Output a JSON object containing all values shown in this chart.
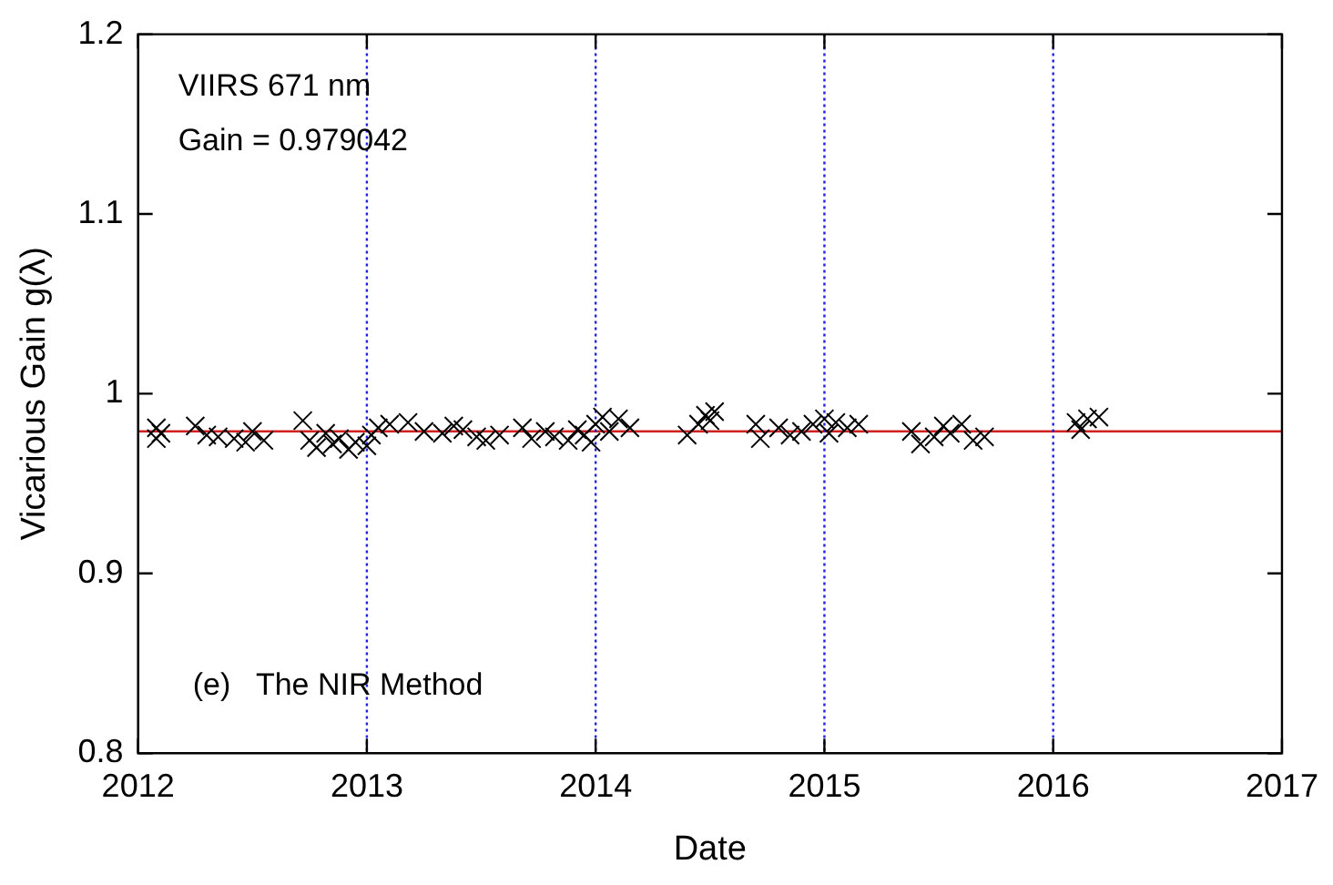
{
  "chart_data": {
    "type": "scatter",
    "xlabel": "Date",
    "ylabel": "Vicarious Gain g(λ)",
    "annotations": [
      "VIIRS 671 nm",
      "Gain = 0.979042",
      "(e)   The NIR Method"
    ],
    "xlim": [
      2012,
      2017
    ],
    "xticks": [
      2012,
      2013,
      2014,
      2015,
      2016,
      2017
    ],
    "ylim": [
      0.8,
      1.2
    ],
    "yticks": [
      0.8,
      0.9,
      1,
      1.1,
      1.2
    ],
    "grid": false,
    "legend": false,
    "marker": "cross",
    "ref_lines": [
      {
        "axis": "y",
        "value": 0.979042,
        "color": "#d02020",
        "line_style": "solid"
      },
      {
        "axis": "x",
        "value": 2013,
        "color": "#2020e0",
        "line_style": "dotted"
      },
      {
        "axis": "x",
        "value": 2014,
        "color": "#2020e0",
        "line_style": "dotted"
      },
      {
        "axis": "x",
        "value": 2015,
        "color": "#2020e0",
        "line_style": "dotted"
      },
      {
        "axis": "x",
        "value": 2016,
        "color": "#2020e0",
        "line_style": "dotted"
      }
    ],
    "series": [
      {
        "color": "#000000",
        "x": [
          2012.08,
          2012.08,
          2012.1,
          2012.25,
          2012.3,
          2012.35,
          2012.42,
          2012.47,
          2012.5,
          2012.55,
          2012.72,
          2012.75,
          2012.78,
          2012.82,
          2012.85,
          2012.88,
          2012.92,
          2012.95,
          2013.0,
          2013.02,
          2013.05,
          2013.1,
          2013.18,
          2013.25,
          2013.33,
          2013.38,
          2013.42,
          2013.48,
          2013.52,
          2013.58,
          2013.68,
          2013.72,
          2013.78,
          2013.82,
          2013.88,
          2013.92,
          2013.95,
          2013.98,
          2014.0,
          2014.03,
          2014.06,
          2014.1,
          2014.15,
          2014.4,
          2014.45,
          2014.48,
          2014.5,
          2014.52,
          2014.7,
          2014.72,
          2014.8,
          2014.85,
          2014.9,
          2014.95,
          2015.0,
          2015.02,
          2015.05,
          2015.1,
          2015.15,
          2015.38,
          2015.42,
          2015.48,
          2015.52,
          2015.55,
          2015.6,
          2015.65,
          2015.7,
          2016.1,
          2016.12,
          2016.15,
          2016.2
        ],
        "values": [
          0.975,
          0.981,
          0.978,
          0.982,
          0.977,
          0.976,
          0.975,
          0.973,
          0.979,
          0.974,
          0.985,
          0.974,
          0.97,
          0.978,
          0.972,
          0.975,
          0.969,
          0.973,
          0.971,
          0.977,
          0.981,
          0.983,
          0.984,
          0.979,
          0.978,
          0.982,
          0.98,
          0.976,
          0.974,
          0.977,
          0.981,
          0.975,
          0.979,
          0.976,
          0.974,
          0.98,
          0.977,
          0.973,
          0.983,
          0.987,
          0.979,
          0.986,
          0.981,
          0.977,
          0.983,
          0.988,
          0.985,
          0.99,
          0.983,
          0.975,
          0.981,
          0.977,
          0.979,
          0.983,
          0.986,
          0.978,
          0.984,
          0.981,
          0.983,
          0.979,
          0.972,
          0.976,
          0.982,
          0.978,
          0.983,
          0.974,
          0.976,
          0.984,
          0.98,
          0.986,
          0.987
        ]
      }
    ]
  }
}
